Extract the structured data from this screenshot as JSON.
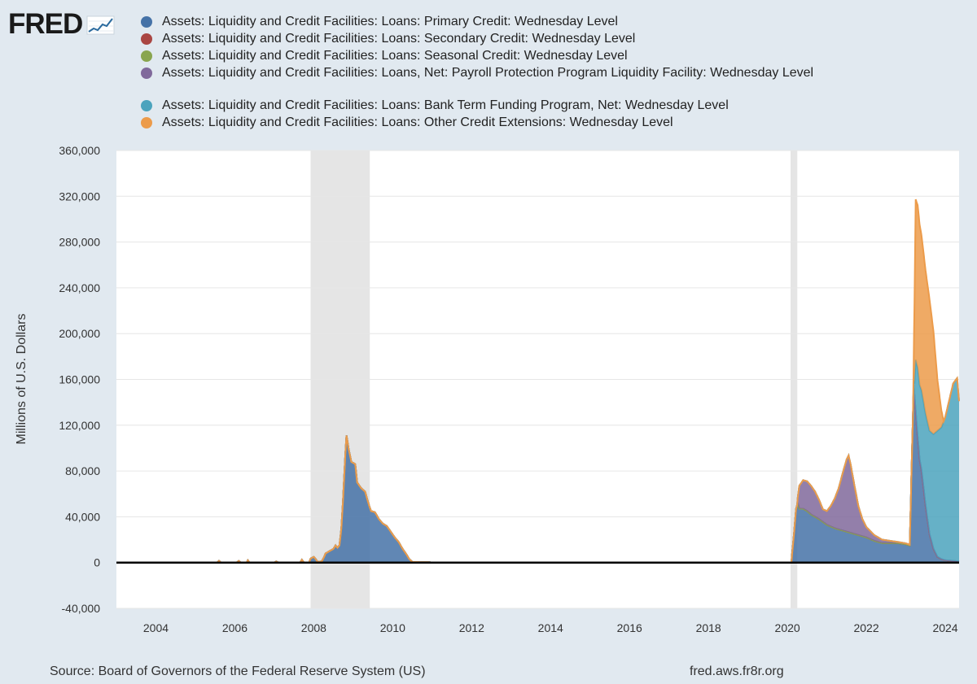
{
  "logo": {
    "text": "FRED",
    "icon": "fred-sparkline-icon"
  },
  "colors": {
    "background": "#e1e9f0",
    "plot_background": "#ffffff",
    "recession": "#e5e5e5",
    "gridline": "#e6e6e6"
  },
  "chart_data": {
    "type": "area",
    "stacked": true,
    "title": "",
    "xlabel": "",
    "ylabel": "Millions of U.S. Dollars",
    "xlim": [
      2003.0,
      2024.35
    ],
    "ylim": [
      -40000,
      360000
    ],
    "x_ticks": [
      2004,
      2006,
      2008,
      2010,
      2012,
      2014,
      2016,
      2018,
      2020,
      2022,
      2024
    ],
    "x_tick_labels": [
      "2004",
      "2006",
      "2008",
      "2010",
      "2012",
      "2014",
      "2016",
      "2018",
      "2020",
      "2022",
      "2024"
    ],
    "y_ticks": [
      -40000,
      0,
      40000,
      80000,
      120000,
      160000,
      200000,
      240000,
      280000,
      320000,
      360000
    ],
    "y_tick_labels": [
      "-40,000",
      "0",
      "40,000",
      "80,000",
      "120,000",
      "160,000",
      "200,000",
      "240,000",
      "280,000",
      "320,000",
      "360,000"
    ],
    "grid": true,
    "legend_position": "top",
    "recessions": [
      [
        2007.92,
        2009.42
      ],
      [
        2020.08,
        2020.25
      ]
    ],
    "series": [
      {
        "name": "Assets: Liquidity and Credit Facilities: Loans: Primary Credit: Wednesday Level",
        "color": "#4572a7",
        "points": [
          [
            2003.0,
            0
          ],
          [
            2005.55,
            0
          ],
          [
            2005.6,
            1500
          ],
          [
            2005.65,
            0
          ],
          [
            2006.05,
            0
          ],
          [
            2006.1,
            1500
          ],
          [
            2006.15,
            0
          ],
          [
            2006.3,
            0
          ],
          [
            2006.33,
            2000
          ],
          [
            2006.37,
            0
          ],
          [
            2007.0,
            0
          ],
          [
            2007.05,
            1000
          ],
          [
            2007.1,
            0
          ],
          [
            2007.65,
            0
          ],
          [
            2007.7,
            2500
          ],
          [
            2007.75,
            0
          ],
          [
            2007.88,
            0
          ],
          [
            2007.92,
            3500
          ],
          [
            2008.0,
            5000
          ],
          [
            2008.05,
            3000
          ],
          [
            2008.1,
            500
          ],
          [
            2008.2,
            1000
          ],
          [
            2008.25,
            4000
          ],
          [
            2008.3,
            8000
          ],
          [
            2008.4,
            10000
          ],
          [
            2008.5,
            12000
          ],
          [
            2008.55,
            15000
          ],
          [
            2008.6,
            13000
          ],
          [
            2008.65,
            15000
          ],
          [
            2008.7,
            30000
          ],
          [
            2008.75,
            60000
          ],
          [
            2008.8,
            95000
          ],
          [
            2008.83,
            111000
          ],
          [
            2008.88,
            100000
          ],
          [
            2008.95,
            88000
          ],
          [
            2009.05,
            86000
          ],
          [
            2009.1,
            70000
          ],
          [
            2009.2,
            65000
          ],
          [
            2009.3,
            62000
          ],
          [
            2009.4,
            50000
          ],
          [
            2009.45,
            45000
          ],
          [
            2009.55,
            44000
          ],
          [
            2009.65,
            38000
          ],
          [
            2009.75,
            34000
          ],
          [
            2009.85,
            32000
          ],
          [
            2009.95,
            27000
          ],
          [
            2010.05,
            22000
          ],
          [
            2010.15,
            18000
          ],
          [
            2010.25,
            12000
          ],
          [
            2010.35,
            7000
          ],
          [
            2010.42,
            3000
          ],
          [
            2010.5,
            500
          ],
          [
            2010.9,
            400
          ],
          [
            2011.0,
            0
          ],
          [
            2020.1,
            0
          ],
          [
            2020.18,
            30000
          ],
          [
            2020.22,
            47000
          ],
          [
            2020.26,
            52000
          ],
          [
            2020.3,
            47000
          ],
          [
            2020.4,
            47000
          ],
          [
            2020.5,
            45000
          ],
          [
            2020.6,
            42000
          ],
          [
            2020.8,
            38000
          ],
          [
            2021.0,
            33000
          ],
          [
            2021.2,
            30000
          ],
          [
            2021.4,
            28000
          ],
          [
            2021.6,
            26000
          ],
          [
            2021.8,
            24000
          ],
          [
            2022.0,
            22000
          ],
          [
            2022.2,
            19000
          ],
          [
            2022.4,
            17000
          ],
          [
            2022.6,
            17000
          ],
          [
            2022.8,
            17000
          ],
          [
            2023.0,
            16000
          ],
          [
            2023.1,
            15000
          ],
          [
            2023.2,
            155000
          ],
          [
            2023.25,
            132000
          ],
          [
            2023.3,
            110000
          ],
          [
            2023.35,
            90000
          ],
          [
            2023.4,
            80000
          ],
          [
            2023.5,
            50000
          ],
          [
            2023.6,
            25000
          ],
          [
            2023.7,
            12000
          ],
          [
            2023.8,
            5000
          ],
          [
            2023.9,
            3000
          ],
          [
            2024.0,
            2000
          ],
          [
            2024.35,
            1000
          ]
        ]
      },
      {
        "name": "Assets: Liquidity and Credit Facilities: Loans: Secondary Credit: Wednesday Level",
        "color": "#aa4643",
        "points": [
          [
            2003.0,
            0
          ],
          [
            2024.35,
            0
          ]
        ]
      },
      {
        "name": "Assets: Liquidity and Credit Facilities: Loans: Seasonal Credit: Wednesday Level",
        "color": "#89a54e",
        "points": [
          [
            2003.0,
            0
          ],
          [
            2024.35,
            0
          ]
        ]
      },
      {
        "name": "Assets: Liquidity and Credit Facilities: Loans, Net: Payroll Protection Program Liquidity Facility: Wednesday Level",
        "color": "#80699b",
        "points": [
          [
            2003.0,
            0
          ],
          [
            2020.25,
            0
          ],
          [
            2020.3,
            20000
          ],
          [
            2020.4,
            25000
          ],
          [
            2020.5,
            26000
          ],
          [
            2020.6,
            25000
          ],
          [
            2020.7,
            22000
          ],
          [
            2020.8,
            17000
          ],
          [
            2020.9,
            11000
          ],
          [
            2021.0,
            12000
          ],
          [
            2021.1,
            18000
          ],
          [
            2021.2,
            26000
          ],
          [
            2021.3,
            36000
          ],
          [
            2021.4,
            50000
          ],
          [
            2021.5,
            63000
          ],
          [
            2021.55,
            67000
          ],
          [
            2021.6,
            60000
          ],
          [
            2021.7,
            42000
          ],
          [
            2021.8,
            25000
          ],
          [
            2021.9,
            15000
          ],
          [
            2022.0,
            9000
          ],
          [
            2022.2,
            5000
          ],
          [
            2022.4,
            3000
          ],
          [
            2022.6,
            2000
          ],
          [
            2022.8,
            1000
          ],
          [
            2023.0,
            800
          ],
          [
            2023.2,
            300
          ],
          [
            2024.35,
            0
          ]
        ]
      },
      {
        "name": "Assets: Liquidity and Credit Facilities: Loans: Bank Term Funding Program, Net: Wednesday Level",
        "color": "#4ba3bd",
        "points": [
          [
            2003.0,
            0
          ],
          [
            2023.19,
            0
          ],
          [
            2023.22,
            12000
          ],
          [
            2023.25,
            45000
          ],
          [
            2023.3,
            60000
          ],
          [
            2023.4,
            70000
          ],
          [
            2023.5,
            80000
          ],
          [
            2023.6,
            90000
          ],
          [
            2023.7,
            100000
          ],
          [
            2023.8,
            110000
          ],
          [
            2023.9,
            115000
          ],
          [
            2024.0,
            125000
          ],
          [
            2024.1,
            140000
          ],
          [
            2024.2,
            155000
          ],
          [
            2024.3,
            160000
          ],
          [
            2024.35,
            140000
          ]
        ]
      },
      {
        "name": "Assets: Liquidity and Credit Facilities: Loans: Other Credit Extensions: Wednesday Level",
        "color": "#ec9b4a",
        "points": [
          [
            2003.0,
            0
          ],
          [
            2023.18,
            0
          ],
          [
            2023.2,
            20000
          ],
          [
            2023.25,
            140000
          ],
          [
            2023.3,
            142000
          ],
          [
            2023.35,
            140000
          ],
          [
            2023.4,
            135000
          ],
          [
            2023.5,
            125000
          ],
          [
            2023.6,
            115000
          ],
          [
            2023.7,
            90000
          ],
          [
            2023.8,
            45000
          ],
          [
            2023.9,
            15000
          ],
          [
            2023.96,
            0
          ],
          [
            2024.35,
            0
          ]
        ]
      }
    ]
  },
  "footer": {
    "source": "Source: Board of Governors of the Federal Reserve System (US)",
    "site": "fred.aws.fr8r.org"
  }
}
